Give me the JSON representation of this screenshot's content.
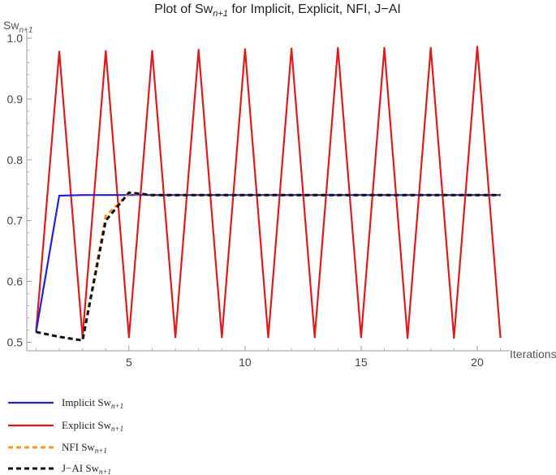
{
  "chart_data": {
    "type": "line",
    "title": {
      "prefix": "Plot of Sw",
      "subscript": "n+1",
      "suffix": " for Implicit, Explicit, NFI, J−AI"
    },
    "xlabel": "Iterations",
    "ylabel": {
      "base": "Sw",
      "subscript": "n+1"
    },
    "xlim": [
      0.6,
      21.4
    ],
    "ylim": [
      0.486,
      1.012
    ],
    "x_ticks": [
      5,
      10,
      15,
      20
    ],
    "y_ticks": [
      0.5,
      0.6,
      0.7,
      0.8,
      0.9,
      1.0
    ],
    "x_tick_labels": [
      "5",
      "10",
      "15",
      "20"
    ],
    "y_tick_labels": [
      "0.5",
      "0.6",
      "0.7",
      "0.8",
      "0.9",
      "1.0"
    ],
    "grid": false,
    "legend_position": "bottom-left",
    "series": [
      {
        "name": "Implicit",
        "name_subscript": "n+1",
        "color": "#1f1fe0",
        "dash": "solid",
        "x": [
          1,
          2,
          3,
          4,
          5,
          6,
          7,
          8,
          9,
          10,
          11,
          12,
          13,
          14,
          15,
          16,
          17,
          18,
          19,
          20,
          21
        ],
        "values": [
          0.517,
          0.741,
          0.742,
          0.742,
          0.742,
          0.742,
          0.742,
          0.742,
          0.742,
          0.742,
          0.742,
          0.742,
          0.742,
          0.742,
          0.742,
          0.742,
          0.742,
          0.742,
          0.742,
          0.742,
          0.742
        ]
      },
      {
        "name": "Explicit",
        "name_subscript": "n+1",
        "color": "#e01a1a",
        "dash": "solid",
        "x": [
          1,
          2,
          3,
          4,
          5,
          6,
          7,
          8,
          9,
          10,
          11,
          12,
          13,
          14,
          15,
          16,
          17,
          18,
          19,
          20,
          21
        ],
        "values": [
          0.517,
          0.978,
          0.508,
          0.979,
          0.508,
          0.979,
          0.508,
          0.981,
          0.508,
          0.982,
          0.508,
          0.983,
          0.508,
          0.984,
          0.508,
          0.984,
          0.507,
          0.984,
          0.507,
          0.986,
          0.507
        ]
      },
      {
        "name": "NFI",
        "name_subscript": "n+1",
        "color": "#f59a1e",
        "dash": "dashed",
        "x": [
          1,
          2,
          3,
          4,
          5,
          6,
          7,
          8,
          9,
          10,
          11,
          12,
          13,
          14,
          15,
          16,
          17,
          18,
          19,
          20,
          21
        ],
        "values": [
          0.517,
          0.509,
          0.503,
          0.708,
          0.744,
          0.742,
          0.742,
          0.742,
          0.742,
          0.742,
          0.742,
          0.742,
          0.742,
          0.742,
          0.742,
          0.742,
          0.742,
          0.742,
          0.742,
          0.742,
          0.742
        ]
      },
      {
        "name": "J−AI",
        "name_subscript": "n+1",
        "color": "#111111",
        "dash": "dashed",
        "x": [
          1,
          2,
          3,
          4,
          5,
          6,
          7,
          8,
          9,
          10,
          11,
          12,
          13,
          14,
          15,
          16,
          17,
          18,
          19,
          20,
          21
        ],
        "values": [
          0.517,
          0.509,
          0.503,
          0.7,
          0.746,
          0.742,
          0.742,
          0.742,
          0.742,
          0.742,
          0.742,
          0.742,
          0.742,
          0.742,
          0.742,
          0.742,
          0.742,
          0.742,
          0.742,
          0.742,
          0.742
        ]
      }
    ]
  }
}
